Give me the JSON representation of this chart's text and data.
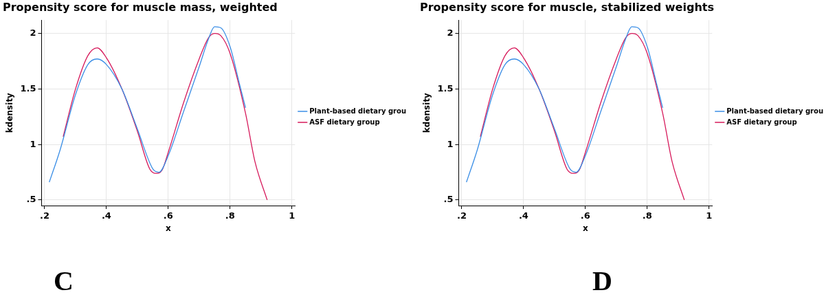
{
  "chart_data": [
    {
      "type": "line",
      "title": "Propensity score for muscle mass, weighted",
      "xlabel": "x",
      "ylabel": "kdensity",
      "annotations": [
        "C"
      ],
      "xlim": [
        0.19,
        1.01
      ],
      "ylim": [
        0.45,
        2.12
      ],
      "xticks": [
        {
          "value": 0.2,
          "label": ".2"
        },
        {
          "value": 0.4,
          "label": ".4"
        },
        {
          "value": 0.6,
          "label": ".6"
        },
        {
          "value": 0.8,
          "label": ".8"
        },
        1
      ],
      "yticks": [
        {
          "value": 0.5,
          "label": ".5"
        },
        1,
        1.5,
        2
      ],
      "grid": true,
      "legend": "right",
      "marker": "none",
      "line_style": "solid",
      "series": [
        {
          "name": "Plant-based dietary grou",
          "color": "#3a8ee6",
          "x": [
            0.215,
            0.25,
            0.3,
            0.34,
            0.37,
            0.4,
            0.45,
            0.5,
            0.55,
            0.57,
            0.6,
            0.65,
            0.7,
            0.73,
            0.75,
            0.77,
            0.8,
            0.83,
            0.85
          ],
          "values": [
            0.66,
            0.95,
            1.45,
            1.72,
            1.77,
            1.72,
            1.5,
            1.14,
            0.78,
            0.75,
            0.9,
            1.3,
            1.7,
            1.95,
            2.06,
            2.05,
            1.88,
            1.55,
            1.33
          ]
        },
        {
          "name": "ASF dietary group",
          "color": "#d6185a",
          "x": [
            0.26,
            0.3,
            0.34,
            0.37,
            0.4,
            0.45,
            0.5,
            0.54,
            0.56,
            0.58,
            0.6,
            0.65,
            0.7,
            0.73,
            0.75,
            0.77,
            0.8,
            0.85,
            0.88,
            0.92
          ],
          "values": [
            1.07,
            1.5,
            1.8,
            1.87,
            1.78,
            1.5,
            1.12,
            0.78,
            0.74,
            0.77,
            0.93,
            1.38,
            1.77,
            1.96,
            2.0,
            1.98,
            1.82,
            1.28,
            0.85,
            0.5
          ]
        }
      ]
    },
    {
      "type": "line",
      "title": "Propensity score for muscle, stabilized weights",
      "xlabel": "x",
      "ylabel": "kdensity",
      "annotations": [
        "D"
      ],
      "xlim": [
        0.19,
        1.01
      ],
      "ylim": [
        0.45,
        2.12
      ],
      "xticks": [
        {
          "value": 0.2,
          "label": ".2"
        },
        {
          "value": 0.4,
          "label": ".4"
        },
        {
          "value": 0.6,
          "label": ".6"
        },
        {
          "value": 0.8,
          "label": ".8"
        },
        1
      ],
      "yticks": [
        {
          "value": 0.5,
          "label": ".5"
        },
        1,
        1.5,
        2
      ],
      "grid": true,
      "legend": "right",
      "marker": "none",
      "line_style": "solid",
      "series": [
        {
          "name": "Plant-based dietary grou",
          "color": "#3a8ee6",
          "x": [
            0.215,
            0.25,
            0.3,
            0.34,
            0.37,
            0.4,
            0.45,
            0.5,
            0.55,
            0.57,
            0.6,
            0.65,
            0.7,
            0.73,
            0.75,
            0.77,
            0.8,
            0.83,
            0.85
          ],
          "values": [
            0.66,
            0.95,
            1.45,
            1.72,
            1.77,
            1.72,
            1.5,
            1.14,
            0.78,
            0.75,
            0.9,
            1.3,
            1.7,
            1.95,
            2.06,
            2.05,
            1.88,
            1.55,
            1.33
          ]
        },
        {
          "name": "ASF dietary group",
          "color": "#d6185a",
          "x": [
            0.26,
            0.3,
            0.34,
            0.37,
            0.4,
            0.45,
            0.5,
            0.54,
            0.56,
            0.58,
            0.6,
            0.65,
            0.7,
            0.73,
            0.75,
            0.77,
            0.8,
            0.85,
            0.88,
            0.92
          ],
          "values": [
            1.07,
            1.5,
            1.8,
            1.87,
            1.78,
            1.5,
            1.12,
            0.78,
            0.74,
            0.77,
            0.93,
            1.38,
            1.77,
            1.96,
            2.0,
            1.98,
            1.82,
            1.28,
            0.85,
            0.5
          ]
        }
      ]
    }
  ]
}
